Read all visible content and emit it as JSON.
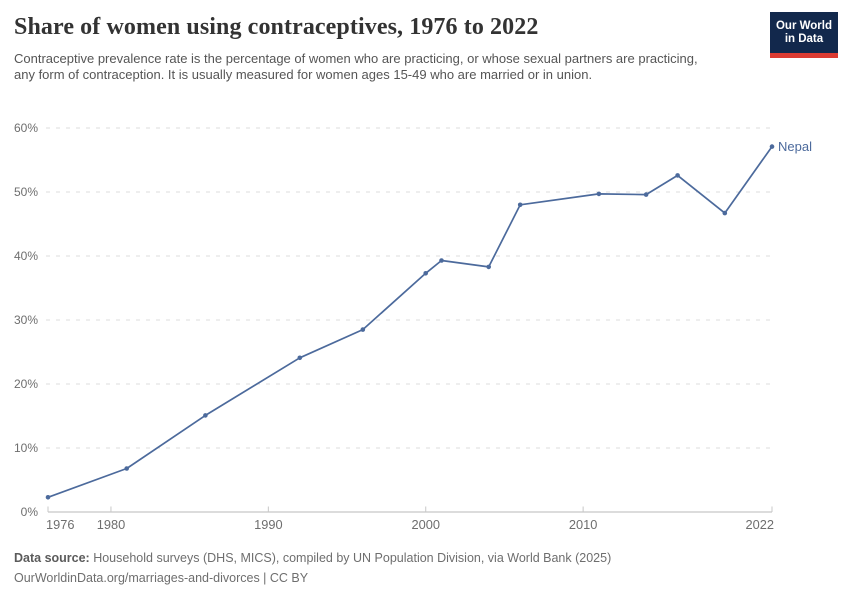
{
  "header": {
    "title": "Share of women using contraceptives, 1976 to 2022",
    "subtitle": "Contraceptive prevalence rate is the percentage of women who are practicing, or whose sexual partners are practicing, any form of contraception. It is usually measured for women ages 15-49 who are married or in union.",
    "logo": {
      "line1": "Our World",
      "line2": "in Data",
      "bg_color": "#12284C",
      "accent_color": "#DC3B32"
    }
  },
  "chart_data": {
    "type": "line",
    "title": "Share of women using contraceptives, 1976 to 2022",
    "xlabel": "",
    "ylabel": "",
    "xlim": [
      1976,
      2022
    ],
    "ylim": [
      0,
      60
    ],
    "x_ticks": [
      1976,
      1980,
      1990,
      2000,
      2010,
      2022
    ],
    "y_ticks": [
      0,
      10,
      20,
      30,
      40,
      50,
      60
    ],
    "y_tick_suffix": "%",
    "grid": "horizontal-dashed",
    "legend_position": "end-of-line-label",
    "series": [
      {
        "name": "Nepal",
        "color": "#4C6A9C",
        "x": [
          1976,
          1981,
          1986,
          1992,
          1996,
          2000,
          2001,
          2004,
          2006,
          2011,
          2014,
          2016,
          2019,
          2022
        ],
        "y": [
          2.3,
          6.8,
          15.1,
          24.1,
          28.5,
          37.3,
          39.3,
          38.3,
          48.0,
          49.7,
          49.6,
          52.6,
          46.7,
          57.1
        ]
      }
    ]
  },
  "footer": {
    "source_label": "Data source:",
    "source_text": " Household surveys (DHS, MICS), compiled by UN Population Division, via World Bank (2025)",
    "license_text": "OurWorldinData.org/marriages-and-divorces | CC BY"
  },
  "colors": {
    "grid": "#dedede",
    "axis_line": "#b8b8b8",
    "tick_mark": "#c8c8c8",
    "axis_text": "#6e6e6e"
  }
}
